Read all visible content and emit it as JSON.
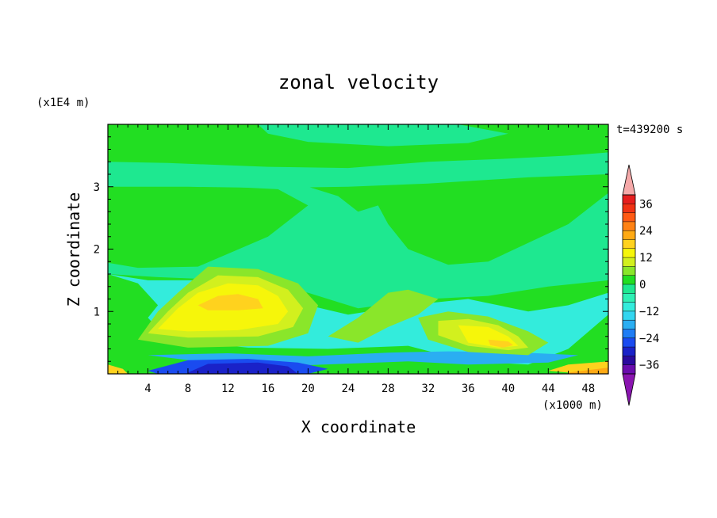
{
  "chart_data": {
    "type": "heatmap",
    "title": "zonal velocity",
    "xlabel": "X coordinate",
    "ylabel": "Z coordinate",
    "x_unit": "(x1000 m)",
    "y_unit": "(x1E4 m)",
    "time_label": "t=439200 s",
    "xlim": [
      0,
      50
    ],
    "ylim": [
      0,
      4
    ],
    "x_ticks": [
      4,
      8,
      12,
      16,
      20,
      24,
      28,
      32,
      36,
      40,
      44,
      48
    ],
    "y_ticks": [
      1,
      2,
      3
    ],
    "colorbar": {
      "labels": [
        36,
        24,
        12,
        0,
        -12,
        -24,
        -36
      ],
      "levels": [
        -40,
        -36,
        -32,
        -28,
        -24,
        -20,
        -16,
        -12,
        -8,
        -4,
        0,
        4,
        8,
        12,
        16,
        20,
        24,
        28,
        32,
        36,
        40
      ],
      "colors": [
        "#6a0dad",
        "#2a0a9e",
        "#1a22c8",
        "#1a4bf0",
        "#1f7df5",
        "#2aaef2",
        "#33d6f0",
        "#33ecdc",
        "#2ef0b4",
        "#1ee890",
        "#22de22",
        "#8ae62a",
        "#d2f01e",
        "#f6f60a",
        "#ffd21e",
        "#ffaa14",
        "#ff8214",
        "#ff5a14",
        "#f03214",
        "#e61e1e"
      ],
      "over_color": "#f5a9a9",
      "under_color": "#8a15b0"
    },
    "fill_colors": {
      "green": "#22de22",
      "mint": "#1ee890",
      "cyan": "#33ecdc",
      "lightblue": "#2aaef2",
      "blue": "#1a4bf0",
      "darkblue": "#1a22c8",
      "lime": "#8ae62a",
      "ygreen": "#d2f01e",
      "yellow": "#f6f60a",
      "gold": "#ffd21e",
      "orange": "#ffaa14"
    },
    "regions": [
      {
        "name": "band-mint-top",
        "color": "mint",
        "points": [
          [
            0,
            3.4
          ],
          [
            6,
            3.38
          ],
          [
            16,
            3.32
          ],
          [
            24,
            3.3
          ],
          [
            32,
            3.4
          ],
          [
            40,
            3.45
          ],
          [
            46,
            3.5
          ],
          [
            50,
            3.55
          ],
          [
            50,
            3.2
          ],
          [
            42,
            3.15
          ],
          [
            32,
            3.05
          ],
          [
            24,
            3.0
          ],
          [
            16,
            2.98
          ],
          [
            8,
            3.0
          ],
          [
            0,
            3.0
          ]
        ]
      },
      {
        "name": "upper-mint-top-strip",
        "color": "mint",
        "points": [
          [
            15,
            4.0
          ],
          [
            35,
            4.0
          ],
          [
            40,
            3.85
          ],
          [
            36,
            3.7
          ],
          [
            28,
            3.65
          ],
          [
            20,
            3.72
          ],
          [
            16,
            3.85
          ]
        ]
      },
      {
        "name": "mint-middle-body",
        "color": "mint",
        "points": [
          [
            12,
            3.0
          ],
          [
            17,
            2.96
          ],
          [
            20,
            2.7
          ],
          [
            16,
            2.2
          ],
          [
            9,
            1.72
          ],
          [
            3,
            1.7
          ],
          [
            0,
            1.78
          ],
          [
            0,
            1.6
          ],
          [
            5,
            1.55
          ],
          [
            13,
            1.5
          ],
          [
            20,
            1.3
          ],
          [
            25,
            1.05
          ],
          [
            32,
            1.2
          ],
          [
            38,
            1.25
          ],
          [
            44,
            1.4
          ],
          [
            50,
            1.5
          ],
          [
            50,
            2.9
          ],
          [
            46,
            2.4
          ],
          [
            42,
            2.1
          ],
          [
            38,
            1.8
          ],
          [
            34,
            1.75
          ],
          [
            30,
            2.0
          ],
          [
            28,
            2.4
          ],
          [
            27,
            2.7
          ],
          [
            25,
            2.6
          ],
          [
            23,
            2.85
          ],
          [
            20,
            3.0
          ]
        ]
      },
      {
        "name": "cyan-lower-band",
        "color": "cyan",
        "points": [
          [
            0,
            1.6
          ],
          [
            3,
            1.45
          ],
          [
            5,
            1.1
          ],
          [
            4,
            0.9
          ],
          [
            6,
            0.55
          ],
          [
            14,
            0.42
          ],
          [
            22,
            0.4
          ],
          [
            30,
            0.45
          ],
          [
            36,
            0.2
          ],
          [
            42,
            0.15
          ],
          [
            46,
            0.4
          ],
          [
            50,
            0.95
          ],
          [
            50,
            1.3
          ],
          [
            46,
            1.1
          ],
          [
            42,
            1.0
          ],
          [
            36,
            1.2
          ],
          [
            30,
            1.1
          ],
          [
            24,
            0.95
          ],
          [
            20,
            1.1
          ],
          [
            16,
            1.3
          ],
          [
            10,
            1.5
          ],
          [
            4,
            1.5
          ]
        ]
      },
      {
        "name": "lightblue-strip",
        "color": "lightblue",
        "points": [
          [
            4,
            0.3
          ],
          [
            10,
            0.18
          ],
          [
            20,
            0.14
          ],
          [
            30,
            0.2
          ],
          [
            36,
            0.15
          ],
          [
            44,
            0.18
          ],
          [
            47,
            0.3
          ],
          [
            40,
            0.35
          ],
          [
            34,
            0.36
          ],
          [
            28,
            0.34
          ],
          [
            20,
            0.28
          ],
          [
            12,
            0.33
          ]
        ]
      },
      {
        "name": "blue-jet",
        "color": "blue",
        "points": [
          [
            4,
            0.05
          ],
          [
            8,
            0.22
          ],
          [
            14,
            0.24
          ],
          [
            19,
            0.18
          ],
          [
            22,
            0.08
          ],
          [
            20,
            0.0
          ],
          [
            5,
            0.0
          ]
        ]
      },
      {
        "name": "darkblue-jet",
        "color": "darkblue",
        "points": [
          [
            8,
            0.02
          ],
          [
            10,
            0.16
          ],
          [
            15,
            0.18
          ],
          [
            18,
            0.12
          ],
          [
            19,
            0.0
          ],
          [
            8,
            0.0
          ]
        ]
      },
      {
        "name": "yellow-blob-outer-lime",
        "color": "lime",
        "points": [
          [
            3,
            0.55
          ],
          [
            5,
            1.0
          ],
          [
            7,
            1.3
          ],
          [
            10,
            1.72
          ],
          [
            15,
            1.68
          ],
          [
            19,
            1.45
          ],
          [
            21,
            1.1
          ],
          [
            20,
            0.65
          ],
          [
            16,
            0.45
          ],
          [
            8,
            0.42
          ]
        ]
      },
      {
        "name": "yellow-blob-ygreen",
        "color": "ygreen",
        "points": [
          [
            4,
            0.65
          ],
          [
            6,
            1.0
          ],
          [
            8,
            1.3
          ],
          [
            11,
            1.58
          ],
          [
            15,
            1.55
          ],
          [
            18,
            1.35
          ],
          [
            19.5,
            1.05
          ],
          [
            18.5,
            0.75
          ],
          [
            15,
            0.6
          ],
          [
            8,
            0.58
          ]
        ]
      },
      {
        "name": "yellow-blob-yellow",
        "color": "yellow",
        "points": [
          [
            5,
            0.72
          ],
          [
            7,
            1.05
          ],
          [
            9,
            1.3
          ],
          [
            12,
            1.45
          ],
          [
            15,
            1.42
          ],
          [
            17,
            1.25
          ],
          [
            18,
            1.0
          ],
          [
            17,
            0.8
          ],
          [
            13,
            0.7
          ],
          [
            8,
            0.68
          ]
        ]
      },
      {
        "name": "yellow-blob-gold",
        "color": "gold",
        "points": [
          [
            9,
            1.1
          ],
          [
            11,
            1.25
          ],
          [
            13,
            1.28
          ],
          [
            15,
            1.2
          ],
          [
            15.5,
            1.05
          ],
          [
            13,
            1.02
          ],
          [
            10,
            1.02
          ]
        ]
      },
      {
        "name": "right-lime-ridge",
        "color": "lime",
        "points": [
          [
            22,
            0.6
          ],
          [
            25,
            0.9
          ],
          [
            28,
            1.3
          ],
          [
            30,
            1.35
          ],
          [
            33,
            1.2
          ],
          [
            31,
            0.95
          ],
          [
            28,
            0.75
          ],
          [
            25,
            0.5
          ]
        ]
      },
      {
        "name": "right-blob-lime",
        "color": "lime",
        "points": [
          [
            31,
            0.9
          ],
          [
            34,
            1.0
          ],
          [
            38,
            0.92
          ],
          [
            42,
            0.68
          ],
          [
            44,
            0.5
          ],
          [
            42,
            0.3
          ],
          [
            36,
            0.35
          ],
          [
            32,
            0.55
          ]
        ]
      },
      {
        "name": "right-blob-ygreen",
        "color": "ygreen",
        "points": [
          [
            33,
            0.85
          ],
          [
            36,
            0.88
          ],
          [
            39,
            0.78
          ],
          [
            41,
            0.6
          ],
          [
            42,
            0.42
          ],
          [
            40,
            0.38
          ],
          [
            36,
            0.45
          ],
          [
            33,
            0.62
          ]
        ]
      },
      {
        "name": "right-blob-yellow",
        "color": "yellow",
        "points": [
          [
            35,
            0.78
          ],
          [
            38,
            0.75
          ],
          [
            40,
            0.6
          ],
          [
            41,
            0.45
          ],
          [
            39,
            0.42
          ],
          [
            36,
            0.5
          ]
        ]
      },
      {
        "name": "right-blob-gold",
        "color": "gold",
        "points": [
          [
            38,
            0.55
          ],
          [
            40,
            0.52
          ],
          [
            40.5,
            0.46
          ],
          [
            39.5,
            0.42
          ],
          [
            38.2,
            0.46
          ]
        ]
      },
      {
        "name": "right-bottom-orange",
        "color": "orange",
        "points": [
          [
            46,
            0.02
          ],
          [
            48,
            0.1
          ],
          [
            50,
            0.12
          ],
          [
            50,
            0.0
          ],
          [
            46,
            0.0
          ]
        ]
      },
      {
        "name": "right-bottom-gold",
        "color": "gold",
        "points": [
          [
            44,
            0.05
          ],
          [
            46,
            0.15
          ],
          [
            50,
            0.2
          ],
          [
            50,
            0.1
          ],
          [
            46,
            0.02
          ]
        ]
      },
      {
        "name": "left-bottom-gold",
        "color": "gold",
        "points": [
          [
            0,
            0.15
          ],
          [
            1.5,
            0.08
          ],
          [
            2,
            0.0
          ],
          [
            0,
            0.0
          ]
        ]
      }
    ]
  }
}
